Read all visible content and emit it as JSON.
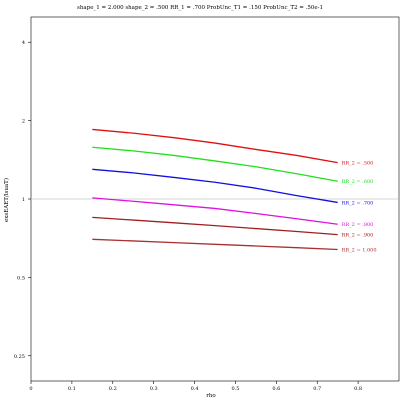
{
  "chart_data": {
    "type": "line",
    "title": "shape_1 = 2.000  shape_2 = .500  RR_1 = .700  ProbUnc_T1 = .150  ProbUnc_T2 = .50e-1",
    "xlabel": "rho",
    "ylabel": "exsEAET/lsuaT)",
    "xlim": [
      0,
      0.9
    ],
    "ylim": [
      0.2,
      5
    ],
    "yscale": "log",
    "xticks": [
      0,
      0.1,
      0.2,
      0.3,
      0.4,
      0.5,
      0.6,
      0.7,
      0.8
    ],
    "xtick_labels": [
      "0",
      "0.1",
      "0.2",
      "0.3",
      "0.4",
      "0.5",
      "0.6",
      "0.7",
      "0.8"
    ],
    "yticks": [
      0.25,
      0.5,
      1,
      2,
      4
    ],
    "ytick_labels": [
      "0.25",
      "0.5",
      "1",
      "2",
      "4"
    ],
    "reference_line": 1,
    "grid": false,
    "legend": "inline labels at right end of each line",
    "x": [
      0.15,
      0.25,
      0.35,
      0.45,
      0.55,
      0.65,
      0.75
    ],
    "series": [
      {
        "name": "RR_2 = .500",
        "color": "#e01010",
        "values": [
          1.85,
          1.79,
          1.72,
          1.64,
          1.55,
          1.47,
          1.38
        ]
      },
      {
        "name": "RR_2 = .600",
        "color": "#20e020",
        "values": [
          1.58,
          1.53,
          1.47,
          1.4,
          1.33,
          1.25,
          1.17
        ]
      },
      {
        "name": "RR_2 = .700",
        "color": "#1010e0",
        "values": [
          1.3,
          1.26,
          1.21,
          1.16,
          1.1,
          1.03,
          0.97
        ]
      },
      {
        "name": "RR_2 = .800",
        "color": "#e010e0",
        "values": [
          1.01,
          0.98,
          0.95,
          0.92,
          0.88,
          0.84,
          0.8
        ]
      },
      {
        "name": "RR_2 = .900",
        "color": "#a02020",
        "values": [
          0.85,
          0.83,
          0.81,
          0.79,
          0.77,
          0.75,
          0.73
        ]
      },
      {
        "name": "RR_2 = 1.000",
        "color": "#a83030",
        "values": [
          0.7,
          0.69,
          0.68,
          0.67,
          0.66,
          0.65,
          0.64
        ]
      }
    ]
  }
}
